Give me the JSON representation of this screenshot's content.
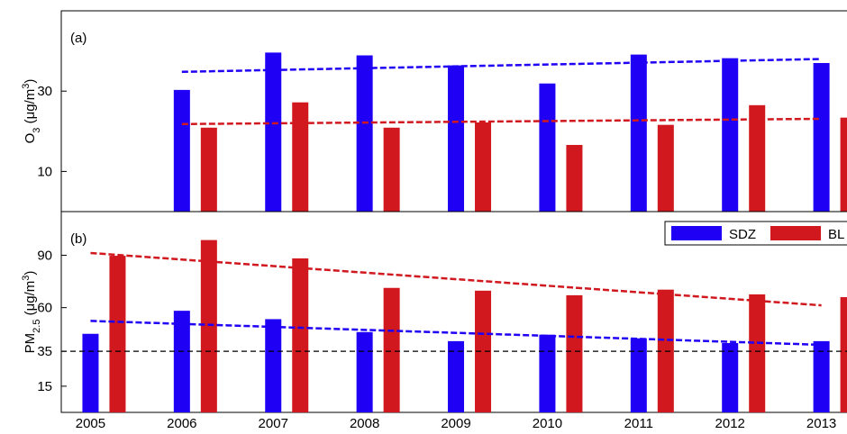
{
  "chart_data": [
    {
      "type": "bar",
      "label": "(a)",
      "ylabel": [
        "O",
        "3",
        " (μg/m",
        "3",
        ")"
      ],
      "x": [
        2005,
        2006,
        2007,
        2008,
        2009,
        2010,
        2011,
        2012,
        2013
      ],
      "xlim": [
        2004.68,
        2013.28
      ],
      "ylim": [
        0,
        50
      ],
      "yticks": [
        10,
        30
      ],
      "series": [
        {
          "color": "#1f00f5",
          "values": [
            null,
            30.3,
            39.6,
            38.9,
            36.4,
            31.9,
            39.1,
            38.2,
            37
          ]
        },
        {
          "color": "#d0181e",
          "values": [
            null,
            20.9,
            27.2,
            20.9,
            22.2,
            16.6,
            21.6,
            26.5,
            23.4
          ]
        }
      ],
      "trends": [
        {
          "color": "#1f00f5",
          "x": [
            2006,
            2013
          ],
          "values": [
            34.8,
            38.0
          ]
        },
        {
          "color": "#d0181e",
          "x": [
            2006,
            2013
          ],
          "values": [
            21.8,
            23.1
          ]
        }
      ],
      "legend": false
    },
    {
      "type": "bar",
      "label": "(b)",
      "ylabel": [
        "PM",
        "2.5",
        " (μg/m",
        "3",
        ")"
      ],
      "x": [
        2005,
        2006,
        2007,
        2008,
        2009,
        2010,
        2011,
        2012,
        2013
      ],
      "xlim": [
        2004.68,
        2013.28
      ],
      "xticks": [
        2005,
        2006,
        2007,
        2008,
        2009,
        2010,
        2011,
        2012,
        2013
      ],
      "ylim": [
        0,
        115
      ],
      "yticks": [
        15,
        35,
        60,
        90
      ],
      "series": [
        {
          "name": "SDZ",
          "color": "#1f00f5",
          "values": [
            45,
            58.2,
            53.4,
            46,
            40.8,
            44.5,
            42.4,
            39.7,
            40.8
          ]
        },
        {
          "name": "BL",
          "color": "#d0181e",
          "values": [
            89.7,
            98.7,
            88.2,
            71.3,
            69.7,
            67.1,
            70.3,
            67.6,
            66
          ]
        }
      ],
      "trends": [
        {
          "color": "#d0181e",
          "x": [
            2005,
            2013
          ],
          "values": [
            91.3,
            61.3
          ]
        },
        {
          "color": "#1f00f5",
          "x": [
            2005,
            2013
          ],
          "values": [
            52.4,
            38.7
          ]
        }
      ],
      "hline": {
        "value": 35,
        "color": "#000000"
      },
      "legend": "upper right"
    }
  ]
}
